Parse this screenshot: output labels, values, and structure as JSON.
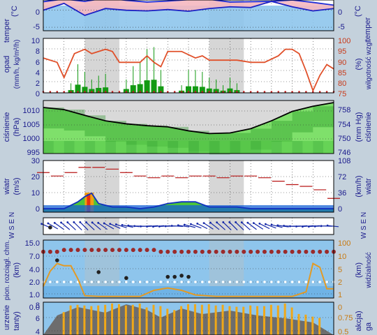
{
  "colors": {
    "page_bg": "#c4d1dc",
    "panel_bg": "#ffffff",
    "night_band": "#d6d6d6",
    "sky_blue": "#8ec5ec",
    "temp_line": "#1d22c4",
    "temp_pink": "#f5b8c0",
    "humidity_line": "#e0502a",
    "precip_green": "#139a13",
    "pressure_green_dark": "#1d8f1d",
    "pressure_green_light": "#7fe06b",
    "wind_red": "#b81414",
    "wind_blue": "#1662d4",
    "wind_arrow": "#1428a8",
    "cloud_dot": "#9b2a2a",
    "visibility_line": "#e39a24",
    "sun_bar": "#f0a818",
    "left_axis_text": "#1a1a8c",
    "right_axis_text": "#b84810",
    "right_axis_text_humidity": "#c83a1a"
  },
  "panels": {
    "temperature": {
      "left_label_1": "temper",
      "left_label_2": "(°C",
      "right_label_1": "(°C",
      "right_label_2": "temper",
      "left_ticks": [
        "0",
        "-5"
      ],
      "right_ticks": [
        "0",
        "-5"
      ]
    },
    "precipitation": {
      "left_label_1": "opad",
      "left_label_2": "(mm/h, kg/m²/h)",
      "right_label_1": "(%)",
      "right_label_2": "wilgotność wzgl.",
      "left_ticks": [
        "10",
        "8",
        "6",
        "4",
        "2",
        "0"
      ],
      "right_ticks": [
        "100",
        "95",
        "90",
        "85",
        "80",
        "75"
      ]
    },
    "pressure": {
      "left_label_1": "ciśnienie",
      "left_label_2": "(hPa)",
      "right_label_1": "(mm Hg)",
      "right_label_2": "ciśnienie",
      "left_ticks": [
        "1010",
        "1005",
        "1000",
        "995"
      ],
      "right_ticks": [
        "758",
        "754",
        "750",
        "746"
      ]
    },
    "wind": {
      "left_label_1": "wiatr",
      "left_label_2": "(m/s)",
      "right_label_1": "(km/h)",
      "right_label_2": "wiatr",
      "left_ticks": [
        "30",
        "20",
        "10",
        "0"
      ],
      "right_ticks": [
        "108",
        "72",
        "36",
        "0"
      ]
    },
    "direction": {
      "left_compass": "W S E N",
      "right_compass": "W S E N"
    },
    "clouds": {
      "left_label_1": "pion. rozciągł. chm.",
      "left_label_2": "(km)",
      "right_label_1": "(km)",
      "right_label_2": "widzialność",
      "left_ticks": [
        "15.0",
        "7.0",
        "4.0",
        "2.0",
        "1.0",
        "0.0"
      ],
      "right_ticks": [
        "100",
        "10",
        "5",
        "2",
        "1",
        "0"
      ]
    },
    "sun": {
      "left_label_1": "urzenie",
      "left_label_2": "tanty)",
      "right_label_1": "akcja)",
      "right_label_2": "ga",
      "left_ticks": [
        "8",
        "6",
        "4"
      ],
      "right_ticks": [
        "0.75",
        "0.5"
      ]
    }
  },
  "chart_data": [
    {
      "type": "line",
      "name": "temperature",
      "ylim": [
        -6,
        3
      ],
      "x_hours": [
        0,
        6,
        12,
        18,
        24,
        30,
        36,
        42,
        48,
        54,
        60,
        66,
        72,
        78,
        84
      ],
      "series": [
        {
          "values": [
            2.5,
            3.3,
            2.6,
            3.6,
            2.9,
            2.4,
            2.7,
            3.1,
            3.2,
            2.4,
            2.5,
            2.6,
            3.0,
            2.3,
            1.5
          ]
        },
        {
          "values": [
            0.0,
            2.0,
            -1.5,
            0.5,
            0.0,
            -0.2,
            0.2,
            -0.3,
            0.5,
            1.0,
            0.8,
            2.6,
            1.0,
            -0.2,
            0.5
          ]
        }
      ]
    },
    {
      "type": "bar+line",
      "name": "precipitation_humidity",
      "left_ylim": [
        0,
        10
      ],
      "right_ylim": [
        75,
        100
      ],
      "humidity_x": [
        0,
        4,
        6,
        9,
        12,
        14,
        18,
        20,
        22,
        24,
        26,
        28,
        30,
        32,
        34,
        36,
        40,
        44,
        46,
        48,
        52,
        56,
        60,
        64,
        68,
        70,
        72,
        74,
        76,
        78,
        80,
        82,
        84
      ],
      "humidity": [
        91,
        89,
        82,
        93,
        95,
        93,
        95,
        94,
        89,
        89,
        89,
        89,
        92,
        89,
        87,
        94,
        94,
        91,
        92,
        90,
        90,
        90,
        89,
        89,
        92,
        95,
        95,
        93,
        85,
        76,
        83,
        88,
        86
      ],
      "precip_x": [
        8,
        10,
        12,
        14,
        16,
        18,
        24,
        26,
        28,
        30,
        32,
        34,
        40,
        42,
        44,
        46,
        48,
        50,
        52,
        54,
        56
      ],
      "precip": [
        0.5,
        1.5,
        1.1,
        0.7,
        0.9,
        1.0,
        0.7,
        1.4,
        1.6,
        2.3,
        2.4,
        1.2,
        0.4,
        1.2,
        1.2,
        1.1,
        0.8,
        0.7,
        0.4,
        0.8,
        0.5
      ]
    },
    {
      "type": "area",
      "name": "pressure",
      "left_ylim": [
        995,
        1012.5
      ],
      "right_ylim": [
        746,
        759
      ],
      "x_hours": [
        0,
        6,
        12,
        18,
        24,
        30,
        36,
        42,
        48,
        54,
        60,
        66,
        72,
        78,
        84
      ],
      "values": [
        1010.2,
        1009.5,
        1007.6,
        1005.8,
        1004.8,
        1004.2,
        1003.8,
        1002.5,
        1001.6,
        1001.8,
        1003.2,
        1005.8,
        1008.9,
        1010.6,
        1011.8
      ]
    },
    {
      "type": "area+line",
      "name": "wind",
      "left_ylim": [
        0,
        30
      ],
      "right_ylim": [
        0,
        108
      ],
      "x_hours": [
        0,
        6,
        10,
        12,
        14,
        16,
        20,
        24,
        28,
        32,
        36,
        40,
        44,
        48,
        52,
        56,
        60,
        64,
        68,
        72,
        76,
        80,
        84
      ],
      "speed": [
        2,
        2,
        6,
        9,
        11,
        5,
        3,
        3,
        2,
        3,
        5,
        6,
        6,
        3,
        3,
        3,
        2,
        2,
        2,
        2,
        2,
        2,
        2
      ],
      "gust_x": [
        0,
        4,
        8,
        12,
        16,
        20,
        24,
        28,
        32,
        36,
        40,
        44,
        48,
        52,
        56,
        60,
        64,
        68,
        72,
        76,
        80,
        84
      ],
      "gust": [
        23,
        21,
        23,
        26,
        26,
        25,
        23,
        21,
        20,
        21,
        20,
        21,
        21,
        20,
        21,
        21,
        20,
        18,
        16,
        15,
        13,
        8
      ]
    },
    {
      "type": "scatter",
      "name": "clouds_visibility",
      "left_ylim": [
        0,
        15
      ],
      "right_ylim": [
        0,
        100
      ],
      "high_cloud_x": [
        0,
        2,
        4,
        6,
        8,
        10,
        12,
        14,
        16,
        18,
        20,
        22,
        24,
        26,
        28,
        30,
        32,
        34,
        36,
        38,
        40,
        42,
        44,
        46,
        48,
        50,
        52,
        54,
        56,
        58,
        60,
        62,
        64,
        66,
        68,
        70,
        72,
        74,
        76,
        78,
        80,
        82,
        84
      ],
      "high_cloud": [
        12,
        12,
        12,
        12.5,
        12.5,
        12.5,
        12.5,
        12.5,
        12.5,
        12.5,
        12.5,
        12.5,
        12.5,
        12.5,
        12.5,
        12.5,
        12.5,
        12,
        12,
        12,
        12,
        12,
        12,
        12,
        12,
        12,
        12,
        12,
        12,
        12,
        12,
        12,
        12,
        12,
        12,
        12,
        12,
        12,
        12,
        12,
        12,
        12,
        12
      ],
      "visibility_x": [
        0,
        2,
        4,
        6,
        8,
        10,
        12,
        16,
        24,
        28,
        32,
        36,
        40,
        44,
        50,
        56,
        60,
        64,
        68,
        72,
        76,
        78,
        80,
        82,
        84
      ],
      "visibility": [
        1.5,
        3.5,
        4.5,
        4.2,
        4.2,
        2.5,
        0.3,
        0.2,
        0.2,
        0.2,
        1.0,
        1.3,
        1.0,
        0.4,
        0.2,
        0.2,
        0.2,
        0.2,
        0.2,
        0.2,
        0.8,
        4.5,
        4.0,
        1.2,
        1.2
      ]
    },
    {
      "type": "bar",
      "name": "sunshine",
      "left_ylim": [
        3,
        8
      ],
      "bar_x": [
        6,
        8,
        10,
        12,
        14,
        16,
        18,
        20,
        22,
        24,
        26,
        28,
        30,
        32,
        34,
        36,
        38,
        40,
        42,
        44,
        46,
        48,
        50,
        52,
        54,
        56,
        58,
        60,
        62,
        64,
        66,
        68,
        70,
        72,
        74,
        76,
        78,
        80
      ],
      "bar_values": [
        6.5,
        7.5,
        7.6,
        7.5,
        7.4,
        7.5,
        7.6,
        7.8,
        7.7,
        7.5,
        7.6,
        7.8,
        7.2,
        7.6,
        7.4,
        7.0,
        6.8,
        7.4,
        7.7,
        7.7,
        7.6,
        7.7,
        7.5,
        7.6,
        7.4,
        7.3,
        7.3,
        7.5,
        7.4,
        7.4,
        7.6,
        7.5,
        7.8,
        7.2,
        6.2,
        6.1,
        5.8,
        5.6
      ]
    }
  ]
}
